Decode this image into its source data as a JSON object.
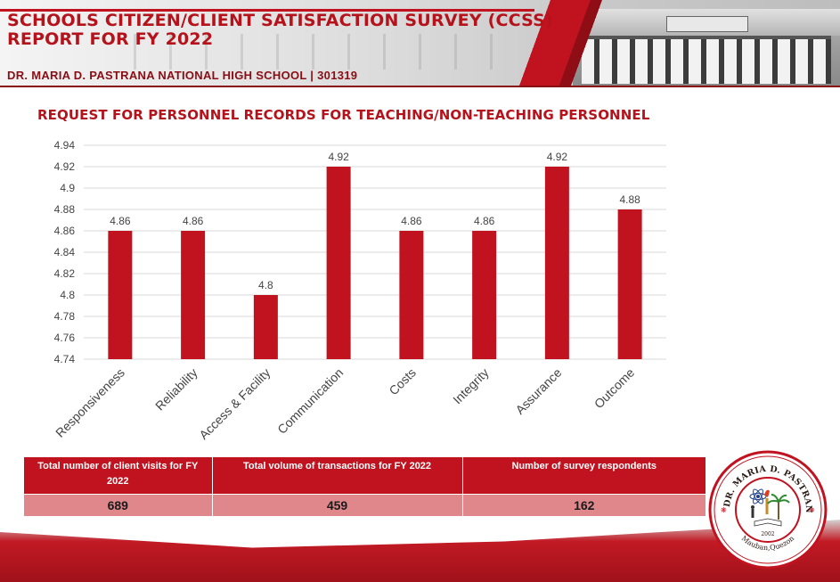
{
  "header": {
    "title_line1": "SCHOOLS CITIZEN/CLIENT SATISFACTION SURVEY (CCSS)",
    "title_line2": "REPORT FOR FY 2022",
    "school": "DR. MARIA D. PASTRANA NATIONAL HIGH SCHOOL | 301319"
  },
  "chart_data": {
    "type": "bar",
    "title": "REQUEST FOR PERSONNEL RECORDS FOR TEACHING/NON-TEACHING PERSONNEL",
    "categories": [
      "Responsiveness",
      "Reliability",
      "Access & Facility",
      "Communication",
      "Costs",
      "Integrity",
      "Assurance",
      "Outcome"
    ],
    "values": [
      4.86,
      4.86,
      4.8,
      4.92,
      4.86,
      4.86,
      4.92,
      4.88
    ],
    "value_labels": [
      "4.86",
      "4.86",
      "4.8",
      "4.92",
      "4.86",
      "4.86",
      "4.92",
      "4.88"
    ],
    "ylim": [
      4.74,
      4.94
    ],
    "yticks": [
      "4.74",
      "4.76",
      "4.78",
      "4.8",
      "4.82",
      "4.84",
      "4.86",
      "4.88",
      "4.9",
      "4.92",
      "4.94"
    ],
    "xlabel": "",
    "ylabel": "",
    "grid": true,
    "bar_color": "#c1121f"
  },
  "summary": {
    "headers": [
      "Total number of client visits for FY 2022",
      "Total volume of transactions for FY 2022",
      "Number of survey respondents"
    ],
    "values": [
      "689",
      "459",
      "162"
    ]
  },
  "seal": {
    "text": "DR. MARIA D. PASTRANA NATIONAL HIGH SCHOOL",
    "year": "2002",
    "place": "Mauban,Quezon"
  },
  "colors": {
    "accent": "#c1121f",
    "dark_red": "#8a0d14",
    "row_fill": "#e0878b"
  }
}
